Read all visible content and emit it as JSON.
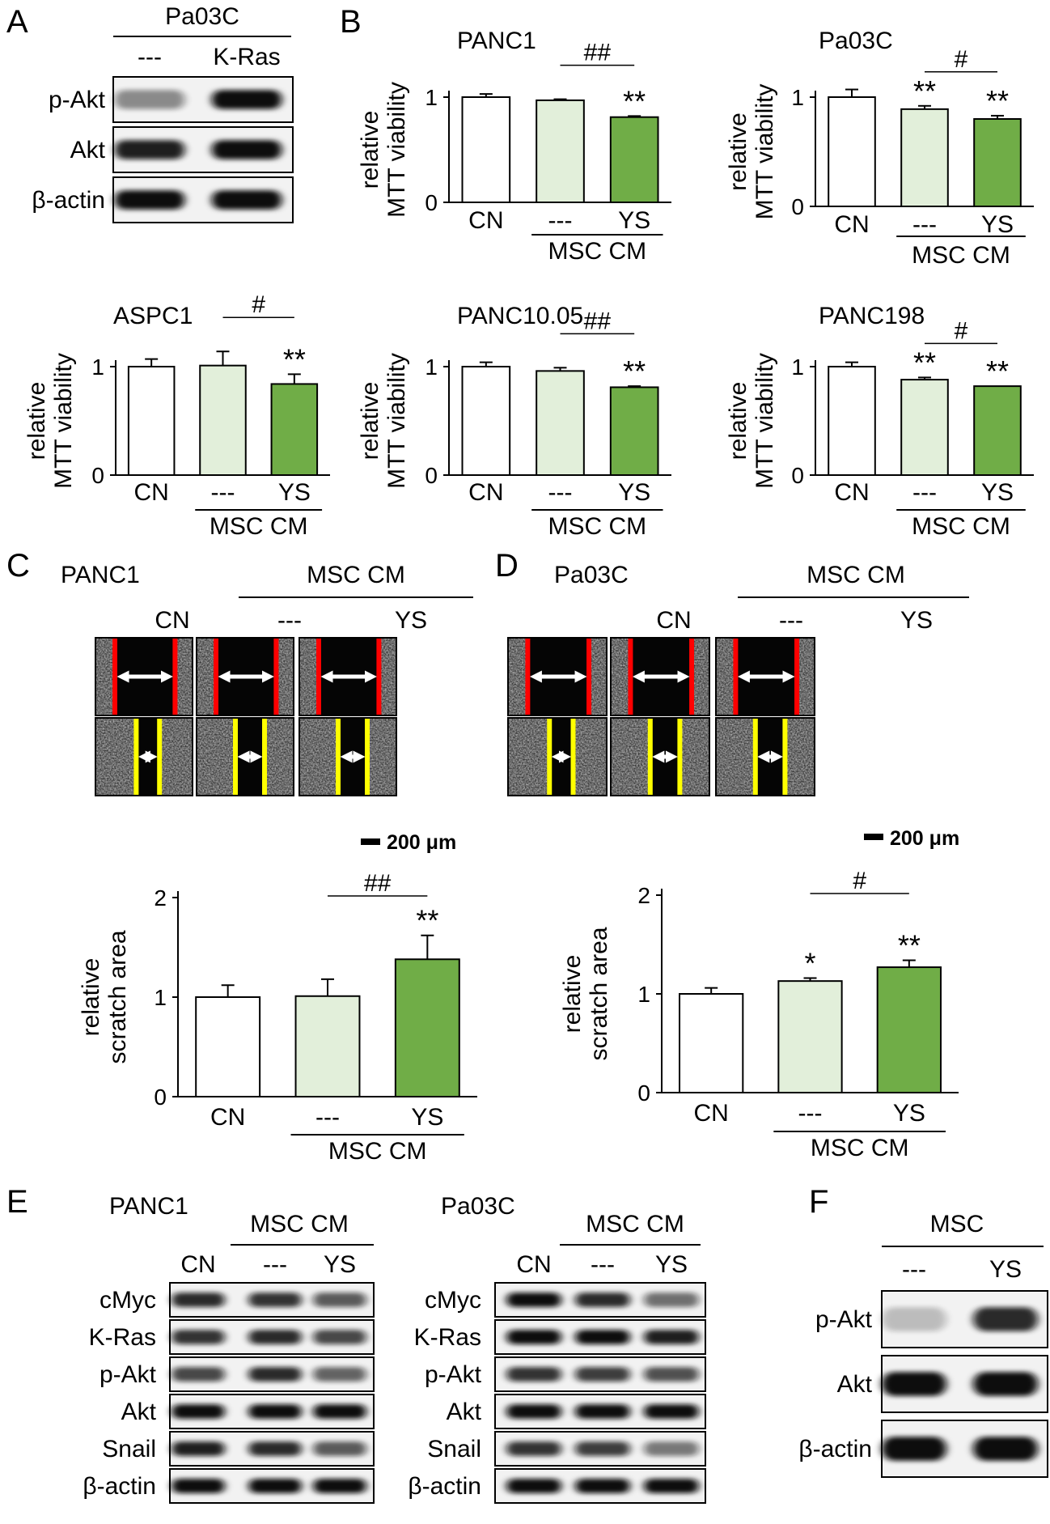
{
  "panels": {
    "A": {
      "letter": "A",
      "cell_line": "Pa03C",
      "lanes": [
        "---",
        "K-Ras"
      ],
      "rows": [
        {
          "label": "p-Akt",
          "bands": [
            0.35,
            1.0
          ]
        },
        {
          "label": "Akt",
          "bands": [
            0.9,
            1.0
          ]
        },
        {
          "label": "β-actin",
          "bands": [
            1.0,
            1.0
          ]
        }
      ]
    },
    "B": {
      "letter": "B"
    },
    "C": {
      "letter": "C",
      "cell_line": "PANC1",
      "group_label": "MSC CM",
      "conditions": [
        "CN",
        "---",
        "YS"
      ],
      "scale_bar": "200 μm"
    },
    "D": {
      "letter": "D",
      "cell_line": "Pa03C",
      "group_label": "MSC CM",
      "conditions": [
        "CN",
        "---",
        "YS"
      ],
      "scale_bar": "200 μm"
    },
    "E": {
      "letter": "E",
      "blots": [
        {
          "cell_line": "PANC1",
          "group_label": "MSC CM",
          "lanes": [
            "CN",
            "---",
            "YS"
          ],
          "rows": [
            {
              "label": "cMyc",
              "bands": [
                0.85,
                0.8,
                0.6
              ]
            },
            {
              "label": "K-Ras",
              "bands": [
                0.8,
                0.85,
                0.7
              ]
            },
            {
              "label": "p-Akt",
              "bands": [
                0.7,
                0.85,
                0.55
              ]
            },
            {
              "label": "Akt",
              "bands": [
                1.0,
                1.0,
                1.0
              ]
            },
            {
              "label": "Snail",
              "bands": [
                0.9,
                0.85,
                0.6
              ]
            },
            {
              "label": "β-actin",
              "bands": [
                1.0,
                1.0,
                1.0
              ]
            }
          ]
        },
        {
          "cell_line": "Pa03C",
          "group_label": "MSC CM",
          "lanes": [
            "CN",
            "---",
            "YS"
          ],
          "rows": [
            {
              "label": "cMyc",
              "bands": [
                1.0,
                0.85,
                0.5
              ]
            },
            {
              "label": "K-Ras",
              "bands": [
                1.0,
                1.0,
                0.9
              ]
            },
            {
              "label": "p-Akt",
              "bands": [
                0.8,
                0.75,
                0.65
              ]
            },
            {
              "label": "Akt",
              "bands": [
                1.0,
                1.0,
                1.0
              ]
            },
            {
              "label": "Snail",
              "bands": [
                0.8,
                0.75,
                0.45
              ]
            },
            {
              "label": "β-actin",
              "bands": [
                1.0,
                1.0,
                1.0
              ]
            }
          ]
        }
      ]
    },
    "F": {
      "letter": "F",
      "cell_line": "MSC",
      "lanes": [
        "---",
        "YS"
      ],
      "rows": [
        {
          "label": "p-Akt",
          "bands": [
            0.1,
            0.85
          ]
        },
        {
          "label": "Akt",
          "bands": [
            1.0,
            1.0
          ]
        },
        {
          "label": "β-actin",
          "bands": [
            1.0,
            1.0
          ]
        }
      ]
    }
  },
  "colors": {
    "control_bar": "#ffffff",
    "msc_cm_bar": "#e2efda",
    "msc_cm_ys_bar": "#70ad47",
    "outline": "#000000",
    "scratch_edge_initial": "#ff0000",
    "scratch_edge_final": "#ffff00",
    "arrow": "#ffffff"
  },
  "chart_data": [
    {
      "type": "bar",
      "panel": "B",
      "title": "PANC1",
      "ylabel": "relative MTT viability",
      "categories": [
        "CN",
        "---",
        "YS"
      ],
      "values": [
        1.0,
        0.97,
        0.81
      ],
      "errors": [
        0.03,
        0.01,
        0.01
      ],
      "group_label": "MSC CM",
      "ylim": [
        0,
        1
      ],
      "yticks": [
        "0",
        "1"
      ],
      "significance_vs_control": [
        "",
        "",
        "**"
      ],
      "comparison": {
        "between": [
          "---",
          "YS"
        ],
        "label": "##"
      }
    },
    {
      "type": "bar",
      "panel": "B",
      "title": "Pa03C",
      "ylabel": "relative MTT viability",
      "categories": [
        "CN",
        "---",
        "YS"
      ],
      "values": [
        1.0,
        0.89,
        0.8
      ],
      "errors": [
        0.07,
        0.03,
        0.03
      ],
      "group_label": "MSC CM",
      "ylim": [
        0,
        1
      ],
      "yticks": [
        "0",
        "1"
      ],
      "significance_vs_control": [
        "",
        "**",
        "**"
      ],
      "comparison": {
        "between": [
          "---",
          "YS"
        ],
        "label": "#"
      }
    },
    {
      "type": "bar",
      "panel": "B",
      "title": "ASPC1",
      "ylabel": "relative MTT viability",
      "categories": [
        "CN",
        "---",
        "YS"
      ],
      "values": [
        1.0,
        1.01,
        0.84
      ],
      "errors": [
        0.07,
        0.13,
        0.09
      ],
      "group_label": "MSC CM",
      "ylim": [
        0,
        1
      ],
      "yticks": [
        "0",
        "1"
      ],
      "significance_vs_control": [
        "",
        "",
        "**"
      ],
      "comparison": {
        "between": [
          "---",
          "YS"
        ],
        "label": "#"
      }
    },
    {
      "type": "bar",
      "panel": "B",
      "title": "PANC10.05",
      "ylabel": "relative MTT viability",
      "categories": [
        "CN",
        "---",
        "YS"
      ],
      "values": [
        1.0,
        0.96,
        0.81
      ],
      "errors": [
        0.04,
        0.03,
        0.01
      ],
      "group_label": "MSC CM",
      "ylim": [
        0,
        1
      ],
      "yticks": [
        "0",
        "1"
      ],
      "significance_vs_control": [
        "",
        "",
        "**"
      ],
      "comparison": {
        "between": [
          "---",
          "YS"
        ],
        "label": "##"
      }
    },
    {
      "type": "bar",
      "panel": "B",
      "title": "PANC198",
      "ylabel": "relative MTT viability",
      "categories": [
        "CN",
        "---",
        "YS"
      ],
      "values": [
        1.0,
        0.88,
        0.82
      ],
      "errors": [
        0.04,
        0.02,
        0.0
      ],
      "group_label": "MSC CM",
      "ylim": [
        0,
        1
      ],
      "yticks": [
        "0",
        "1"
      ],
      "significance_vs_control": [
        "",
        "**",
        "**"
      ],
      "comparison": {
        "between": [
          "---",
          "YS"
        ],
        "label": "#"
      }
    },
    {
      "type": "bar",
      "panel": "C",
      "title": "",
      "ylabel": "relative scratch area",
      "categories": [
        "CN",
        "---",
        "YS"
      ],
      "values": [
        1.0,
        1.01,
        1.38
      ],
      "errors": [
        0.12,
        0.17,
        0.24
      ],
      "group_label": "MSC CM",
      "ylim": [
        0,
        2
      ],
      "yticks": [
        "0",
        "1",
        "2"
      ],
      "significance_vs_control": [
        "",
        "",
        "**"
      ],
      "comparison": {
        "between": [
          "---",
          "YS"
        ],
        "label": "##"
      }
    },
    {
      "type": "bar",
      "panel": "D",
      "title": "",
      "ylabel": "relative scratch area",
      "categories": [
        "CN",
        "---",
        "YS"
      ],
      "values": [
        1.0,
        1.13,
        1.27
      ],
      "errors": [
        0.06,
        0.03,
        0.07
      ],
      "group_label": "MSC CM",
      "ylim": [
        0,
        2
      ],
      "yticks": [
        "0",
        "1",
        "2"
      ],
      "significance_vs_control": [
        "",
        "*",
        "**"
      ],
      "comparison": {
        "between": [
          "---",
          "YS"
        ],
        "label": "#"
      }
    }
  ]
}
